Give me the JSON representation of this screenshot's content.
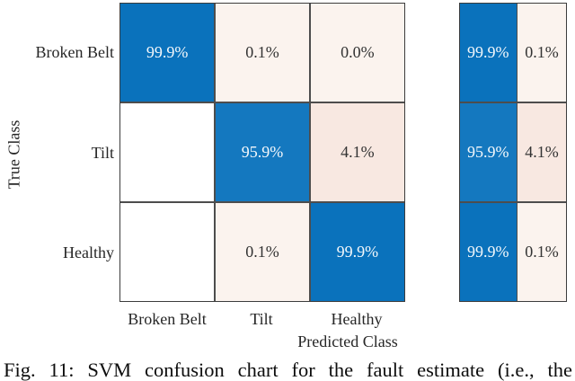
{
  "figure": {
    "caption": "Fig. 11: SVM confusion chart for the fault estimate (i.e., the"
  },
  "chart_data": {
    "type": "heatmap",
    "title": "",
    "xlabel": "Predicted Class",
    "ylabel": "True Class",
    "rows": [
      "Broken Belt",
      "Tilt",
      "Healthy"
    ],
    "cols": [
      "Broken Belt",
      "Tilt",
      "Healthy"
    ],
    "cells_percent": [
      [
        99.9,
        0.1,
        0.0
      ],
      [
        null,
        95.9,
        4.1
      ],
      [
        null,
        0.1,
        99.9
      ]
    ],
    "cell_labels": [
      [
        "99.9%",
        "0.1%",
        "0.0%"
      ],
      [
        "",
        "95.9%",
        "4.1%"
      ],
      [
        "",
        "0.1%",
        "99.9%"
      ]
    ],
    "row_summary": {
      "true_positive_labels": [
        "99.9%",
        "95.9%",
        "99.9%"
      ],
      "false_negative_labels": [
        "0.1%",
        "4.1%",
        "0.1%"
      ]
    },
    "legend_position": "none",
    "grid": true,
    "normalization": "row-normalized side panel"
  },
  "colors": {
    "diag-blue": "#0a72bc",
    "diag-blue-light": "#1478bf",
    "off-light": "#fbf3ee",
    "off-pink": "#f8e8e1",
    "grid-line": "#4d4d4d",
    "border": "#3c3c3c",
    "text-dark": "#333333",
    "text-on-blue": "#f4f8fb"
  }
}
